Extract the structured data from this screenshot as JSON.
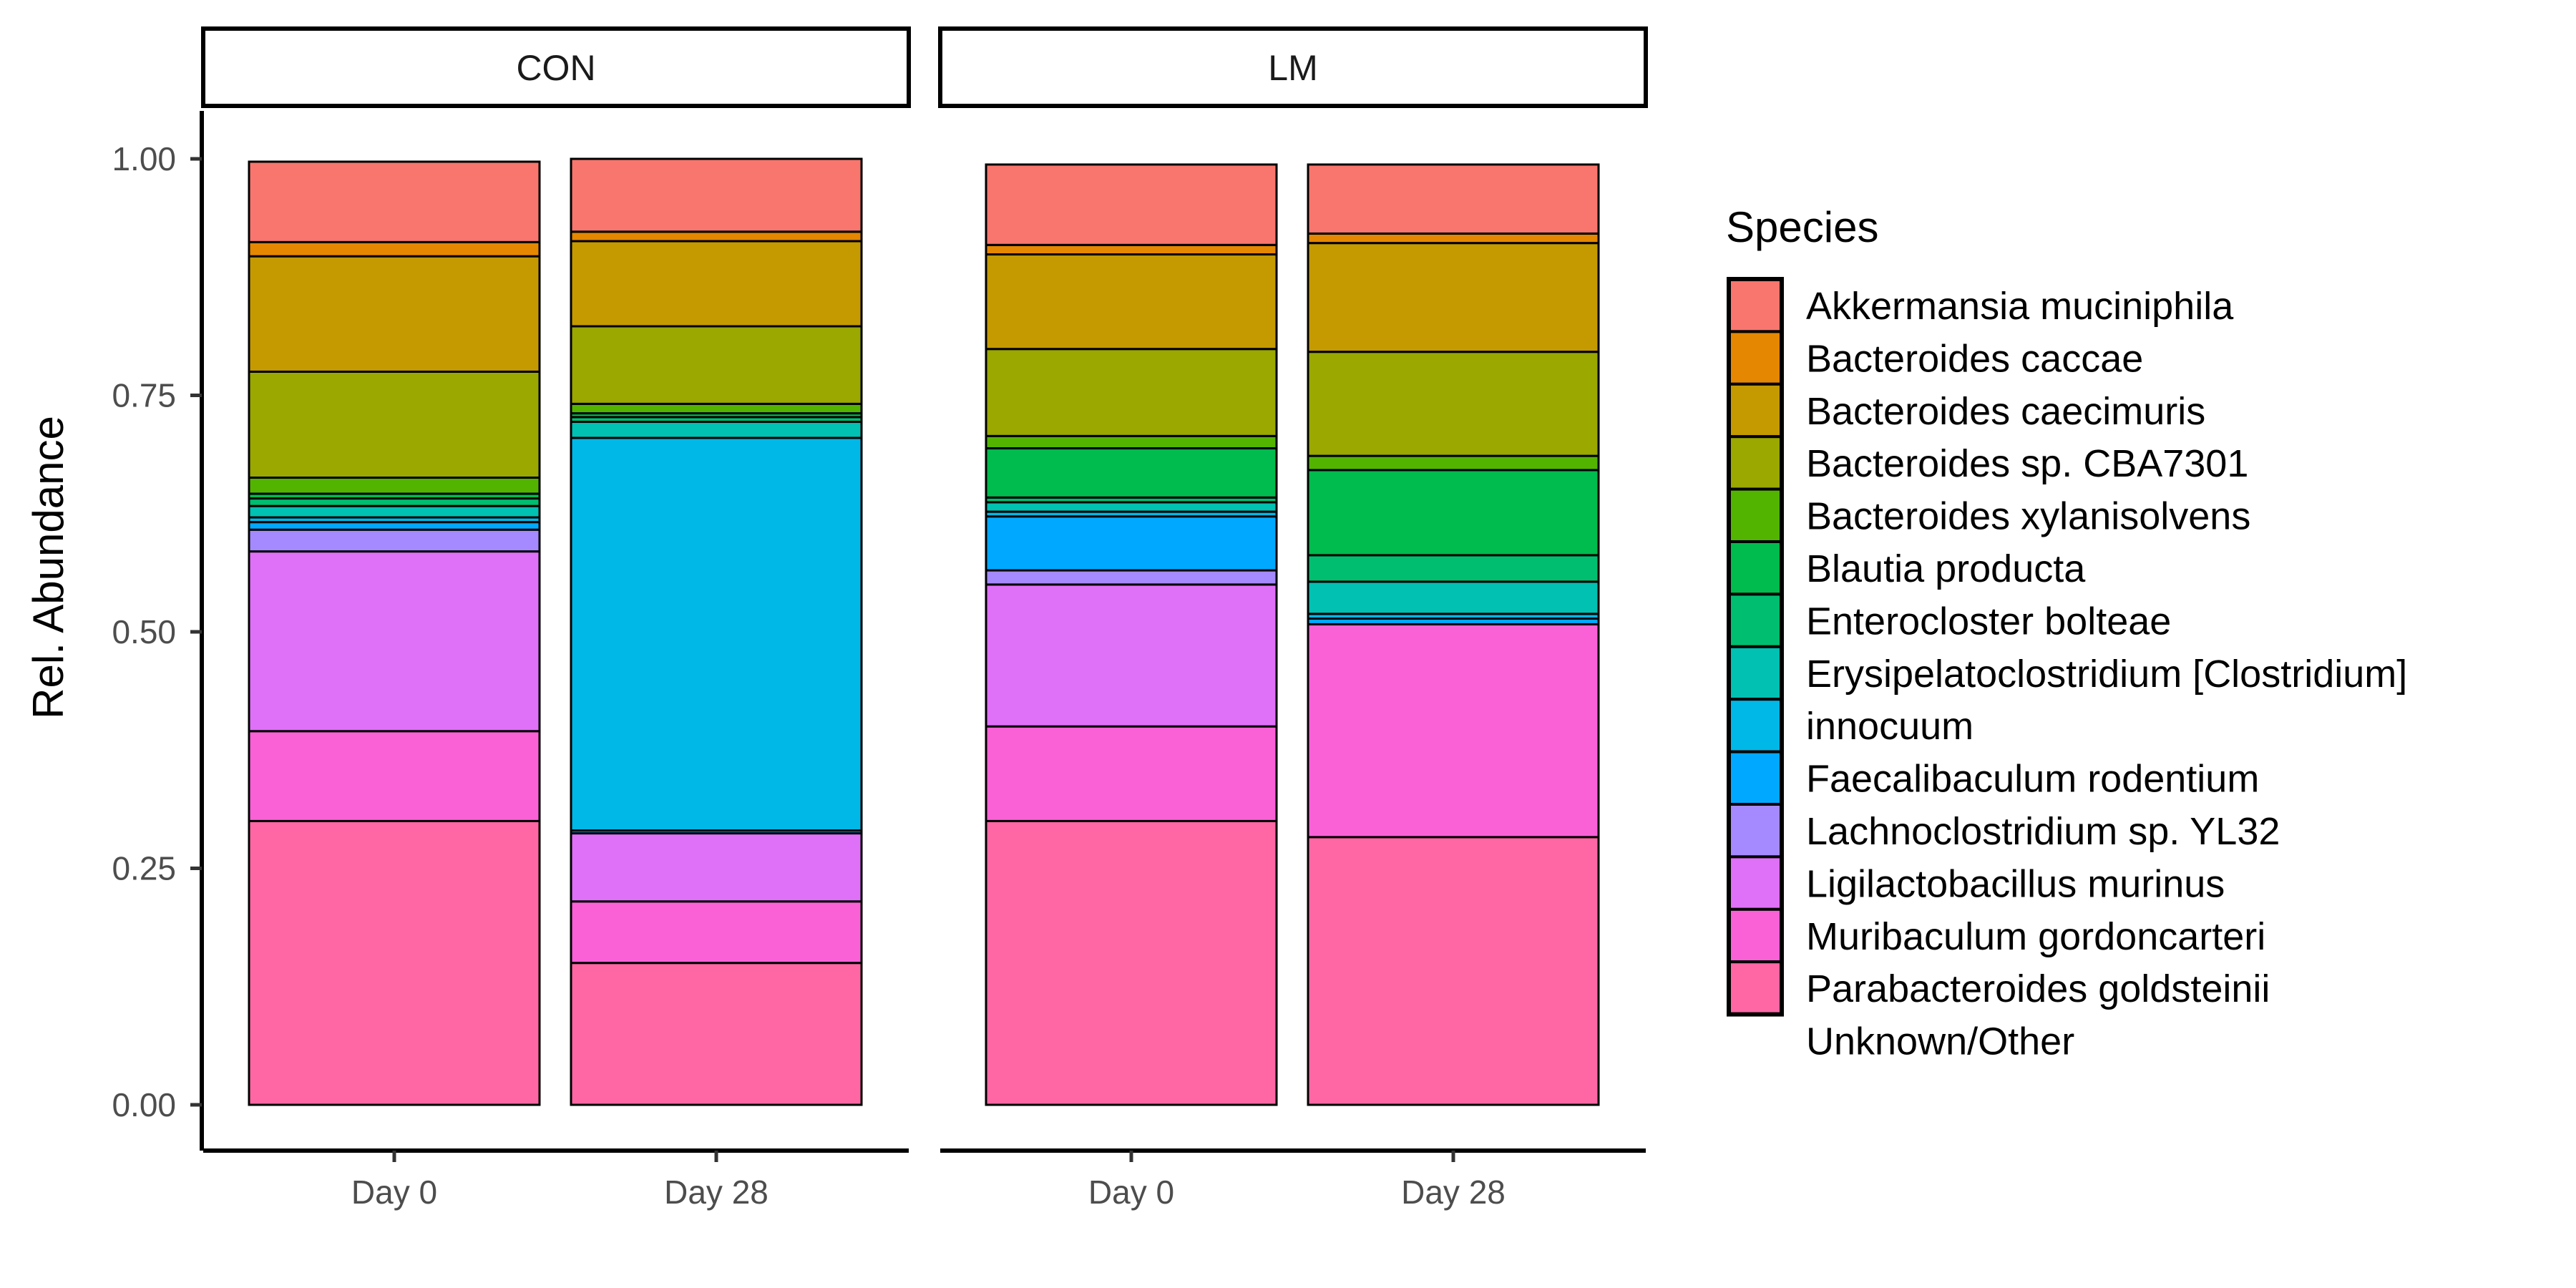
{
  "chart_data": {
    "type": "bar",
    "stacked": true,
    "facets": [
      "CON",
      "LM"
    ],
    "categories": [
      "Day 0",
      "Day 28"
    ],
    "ylabel": "Rel. Abundance",
    "xlabel": "",
    "ylim": [
      0,
      1
    ],
    "yticks": [
      "0.00",
      "0.25",
      "0.50",
      "0.75",
      "1.00"
    ],
    "legend": {
      "title": "Species",
      "position": "right"
    },
    "series": [
      {
        "name": "Unknown/Other",
        "color": "#FF67A4",
        "values": {
          "CON": [
            0.3,
            0.15
          ],
          "LM": [
            0.3,
            0.283
          ]
        }
      },
      {
        "name": "Parabacteroides goldsteinii",
        "color": "#FB61D7",
        "values": {
          "CON": [
            0.095,
            0.065
          ],
          "LM": [
            0.1,
            0.225
          ]
        }
      },
      {
        "name": "Muribaculum gordoncarteri",
        "color": "#DF70F8",
        "values": {
          "CON": [
            0.19,
            0.072
          ],
          "LM": [
            0.15,
            0.0
          ]
        }
      },
      {
        "name": "Ligilactobacillus murinus",
        "color": "#A58AFF",
        "values": {
          "CON": [
            0.023,
            0.0
          ],
          "LM": [
            0.015,
            0.0
          ]
        }
      },
      {
        "name": "Lachnoclostridium sp. YL32",
        "color": "#00A9FF",
        "values": {
          "CON": [
            0.008,
            0.003
          ],
          "LM": [
            0.057,
            0.006
          ]
        }
      },
      {
        "name": "Faecalibaculum rodentium",
        "color": "#00B8E7",
        "values": {
          "CON": [
            0.005,
            0.415
          ],
          "LM": [
            0.005,
            0.005
          ]
        }
      },
      {
        "name": "Erysipelatoclostridium [Clostridium] innocuum",
        "color": "#00C1B2",
        "values": {
          "CON": [
            0.012,
            0.017
          ],
          "LM": [
            0.01,
            0.034
          ]
        }
      },
      {
        "name": "Enterocloster bolteae",
        "color": "#00BE70",
        "values": {
          "CON": [
            0.008,
            0.005
          ],
          "LM": [
            0.005,
            0.028
          ]
        }
      },
      {
        "name": "Blautia producta",
        "color": "#00BB4E",
        "values": {
          "CON": [
            0.005,
            0.004
          ],
          "LM": [
            0.052,
            0.09
          ]
        }
      },
      {
        "name": "Bacteroides xylanisolvens",
        "color": "#53B400",
        "values": {
          "CON": [
            0.017,
            0.01
          ],
          "LM": [
            0.013,
            0.015
          ]
        }
      },
      {
        "name": "Bacteroides sp. CBA7301",
        "color": "#9AA800",
        "values": {
          "CON": [
            0.112,
            0.082
          ],
          "LM": [
            0.092,
            0.11
          ]
        }
      },
      {
        "name": "Bacteroides caecimuris",
        "color": "#C49A00",
        "values": {
          "CON": [
            0.122,
            0.09
          ],
          "LM": [
            0.1,
            0.115
          ]
        }
      },
      {
        "name": "Bacteroides caccae",
        "color": "#E58700",
        "values": {
          "CON": [
            0.015,
            0.01
          ],
          "LM": [
            0.01,
            0.01
          ]
        }
      },
      {
        "name": "Akkermansia muciniphila",
        "color": "#F8766D",
        "values": {
          "CON": [
            0.085,
            0.077
          ],
          "LM": [
            0.085,
            0.073
          ]
        }
      }
    ],
    "legend_lines": [
      [
        "Akkermansia muciniphila"
      ],
      [
        "Bacteroides caccae"
      ],
      [
        "Bacteroides caecimuris"
      ],
      [
        "Bacteroides sp. CBA7301"
      ],
      [
        "Bacteroides xylanisolvens"
      ],
      [
        "Blautia producta"
      ],
      [
        "Enterocloster bolteae"
      ],
      [
        "Erysipelatoclostridium [Clostridium]",
        "innocuum"
      ],
      [
        "Faecalibaculum rodentium"
      ],
      [
        "Lachnoclostridium sp. YL32"
      ],
      [
        "Ligilactobacillus murinus"
      ],
      [
        "Muribaculum gordoncarteri"
      ],
      [
        "Parabacteroides goldsteinii"
      ],
      [
        "Unknown/Other"
      ]
    ]
  }
}
